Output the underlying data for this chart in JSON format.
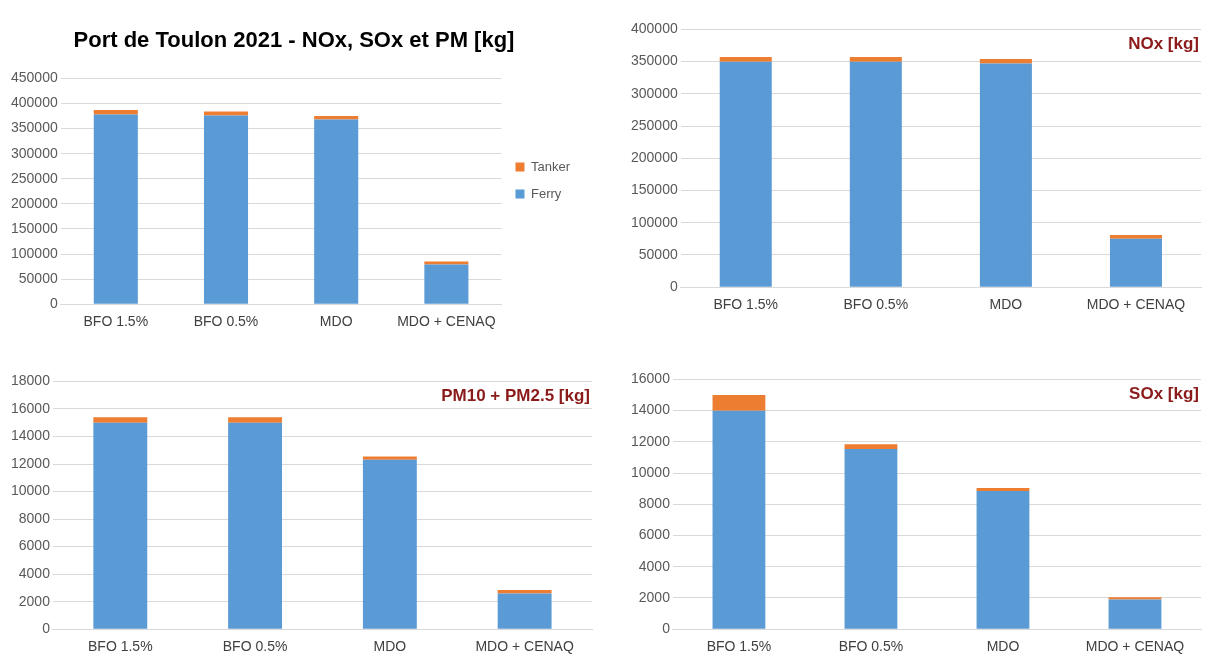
{
  "chart_data": [
    {
      "type": "bar",
      "title": "Port de Toulon 2021 - NOx, SOx et PM [kg]",
      "categories": [
        "BFO 1.5%",
        "BFO 0.5%",
        "MDO",
        "MDO + CENAQ"
      ],
      "stacked": true,
      "series": [
        {
          "name": "Ferry",
          "color": "#5b9bd5",
          "values": [
            378000,
            376000,
            368000,
            79000
          ]
        },
        {
          "name": "Tanker",
          "color": "#ed7d31",
          "values": [
            9000,
            8000,
            7000,
            6000
          ]
        }
      ],
      "ylim": [
        0,
        450000
      ],
      "yticks": [
        0,
        50000,
        100000,
        150000,
        200000,
        250000,
        300000,
        350000,
        400000,
        450000
      ],
      "grid": "y",
      "legend": "right"
    },
    {
      "type": "bar",
      "title": "NOx [kg]",
      "categories": [
        "BFO 1.5%",
        "BFO 0.5%",
        "MDO",
        "MDO + CENAQ"
      ],
      "stacked": true,
      "series": [
        {
          "color": "#5b9bd5",
          "values": [
            350000,
            350000,
            347000,
            75000
          ]
        },
        {
          "color": "#ed7d31",
          "values": [
            7000,
            7000,
            7000,
            6000
          ]
        }
      ],
      "ylim": [
        0,
        400000
      ],
      "yticks": [
        0,
        50000,
        100000,
        150000,
        200000,
        250000,
        300000,
        350000,
        400000
      ],
      "grid": "y"
    },
    {
      "type": "bar",
      "title": "PM10 + PM2.5 [kg]",
      "categories": [
        "BFO 1.5%",
        "BFO 0.5%",
        "MDO",
        "MDO + CENAQ"
      ],
      "stacked": true,
      "series": [
        {
          "color": "#5b9bd5",
          "values": [
            15000,
            15000,
            12300,
            2600
          ]
        },
        {
          "color": "#ed7d31",
          "values": [
            400,
            400,
            250,
            250
          ]
        }
      ],
      "ylim": [
        0,
        18000
      ],
      "yticks": [
        0,
        2000,
        4000,
        6000,
        8000,
        10000,
        12000,
        14000,
        16000,
        18000
      ],
      "grid": "y"
    },
    {
      "type": "bar",
      "title": "SOx [kg]",
      "categories": [
        "BFO 1.5%",
        "BFO 0.5%",
        "MDO",
        "MDO + CENAQ"
      ],
      "stacked": true,
      "series": [
        {
          "color": "#5b9bd5",
          "values": [
            14000,
            11550,
            8850,
            1900
          ]
        },
        {
          "color": "#ed7d31",
          "values": [
            1000,
            300,
            200,
            150
          ]
        }
      ],
      "ylim": [
        0,
        16000
      ],
      "yticks": [
        0,
        2000,
        4000,
        6000,
        8000,
        10000,
        12000,
        14000,
        16000
      ],
      "grid": "y"
    }
  ]
}
